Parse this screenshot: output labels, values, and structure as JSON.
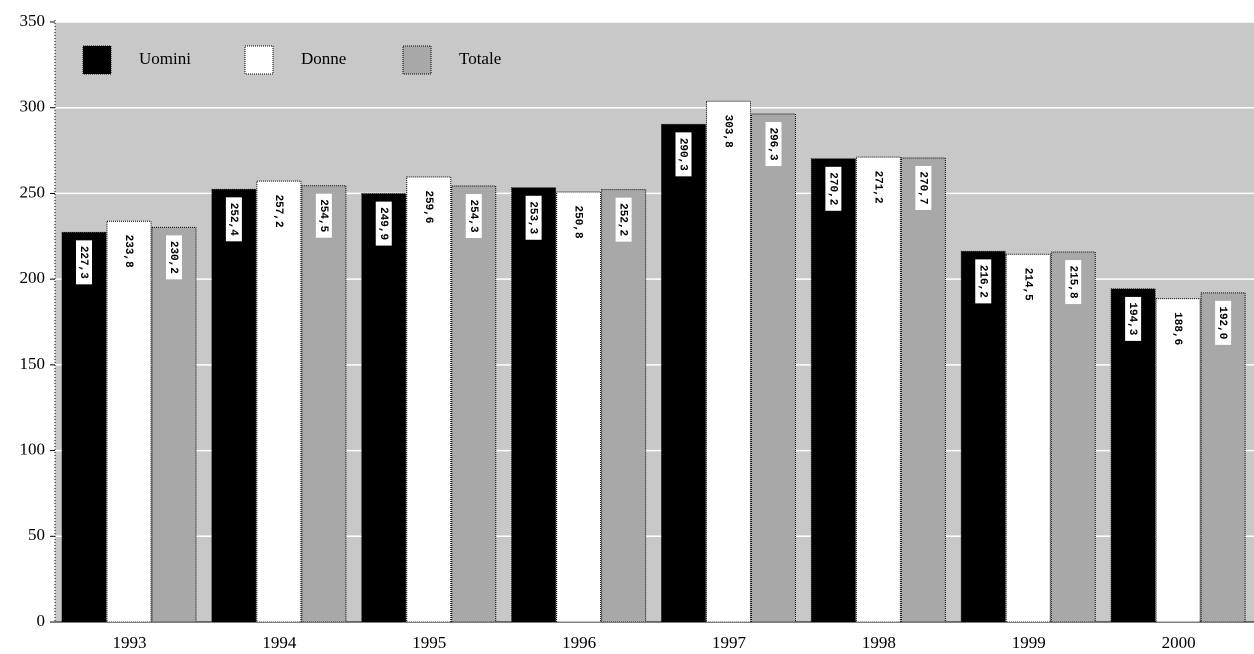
{
  "chart_data": {
    "type": "bar",
    "categories": [
      "1993",
      "1994",
      "1995",
      "1996",
      "1997",
      "1998",
      "1999",
      "2000"
    ],
    "series": [
      {
        "name": "Uomini",
        "color": "#000000",
        "values": [
          227.3,
          252.4,
          249.9,
          253.3,
          290.3,
          270.2,
          216.2,
          194.3
        ],
        "value_labels": [
          "227,3",
          "252,4",
          "249,9",
          "253,3",
          "290,3",
          "270,2",
          "216,2",
          "194,3"
        ]
      },
      {
        "name": "Donne",
        "color": "#ffffff",
        "values": [
          233.8,
          257.2,
          259.6,
          250.8,
          303.8,
          271.2,
          214.5,
          188.6
        ],
        "value_labels": [
          "233,8",
          "257,2",
          "259,6",
          "250,8",
          "303,8",
          "271,2",
          "214,5",
          "188,6"
        ]
      },
      {
        "name": "Totale",
        "color": "#a8a8a8",
        "values": [
          230.2,
          254.5,
          254.3,
          252.2,
          296.3,
          270.7,
          215.8,
          192.0
        ],
        "value_labels": [
          "230,2",
          "254,5",
          "254,3",
          "252,2",
          "296,3",
          "270,7",
          "215,8",
          "192,0"
        ]
      }
    ],
    "ylim": [
      0,
      350
    ],
    "yticks": [
      0,
      50,
      100,
      150,
      200,
      250,
      300,
      350
    ],
    "grid": true,
    "legend": "top-left"
  }
}
